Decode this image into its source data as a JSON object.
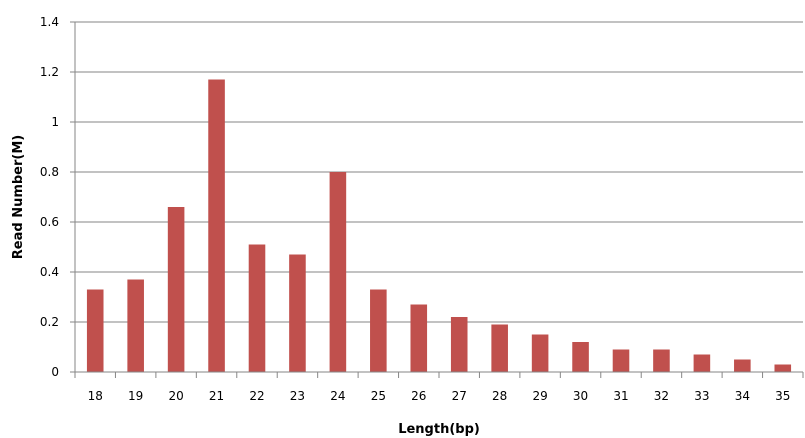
{
  "chart_data": {
    "type": "bar",
    "title": "",
    "xlabel": "Length(bp)",
    "ylabel": "Read Number(M)",
    "categories": [
      "18",
      "19",
      "20",
      "21",
      "22",
      "23",
      "24",
      "25",
      "26",
      "27",
      "28",
      "29",
      "30",
      "31",
      "32",
      "33",
      "34",
      "35"
    ],
    "values": [
      0.33,
      0.37,
      0.66,
      1.17,
      0.51,
      0.47,
      0.8,
      0.33,
      0.27,
      0.22,
      0.19,
      0.15,
      0.12,
      0.09,
      0.09,
      0.07,
      0.05,
      0.03
    ],
    "yticks": [
      "0",
      "0.2",
      "0.4",
      "0.6",
      "0.8",
      "1",
      "1.2",
      "1.4"
    ],
    "ylim": [
      0,
      1.4
    ],
    "grid": true,
    "legend": "none",
    "bar_color": "#c0504d",
    "grid_color": "#868686"
  }
}
